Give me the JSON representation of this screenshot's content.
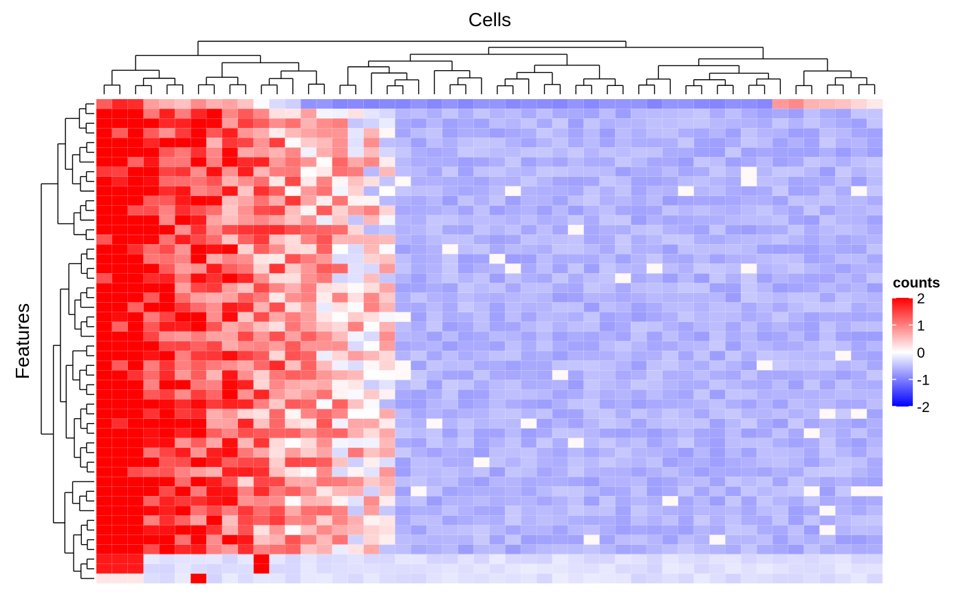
{
  "chart_data": {
    "type": "heatmap",
    "title": "Cells",
    "xlabel": "Cells",
    "ylabel": "Features",
    "n_rows": 50,
    "n_cols": 50,
    "row_dendrogram": true,
    "column_dendrogram": true,
    "colorscale": [
      {
        "value": -2,
        "color": "#0000FF"
      },
      {
        "value": 0,
        "color": "#FFFFFF"
      },
      {
        "value": 2,
        "color": "#FF0000"
      }
    ],
    "zlim": [
      -2,
      2
    ],
    "legend": {
      "title": "counts",
      "position": "right",
      "ticks": [
        {
          "value": 2,
          "label": "2"
        },
        {
          "value": 1,
          "label": "1"
        },
        {
          "value": 0,
          "label": "0"
        },
        {
          "value": -1,
          "label": "-1"
        },
        {
          "value": -2,
          "label": "-2"
        }
      ]
    },
    "column_groups": {
      "high_expression_cols": 19,
      "special_top_row_cols": [
        43,
        44,
        45,
        46,
        47,
        48,
        49
      ]
    },
    "value_bands": {
      "strong_red": 2.0,
      "light_red": 0.5,
      "white": 0.0,
      "background_purple": -0.6,
      "deep_purple": -0.9
    }
  }
}
